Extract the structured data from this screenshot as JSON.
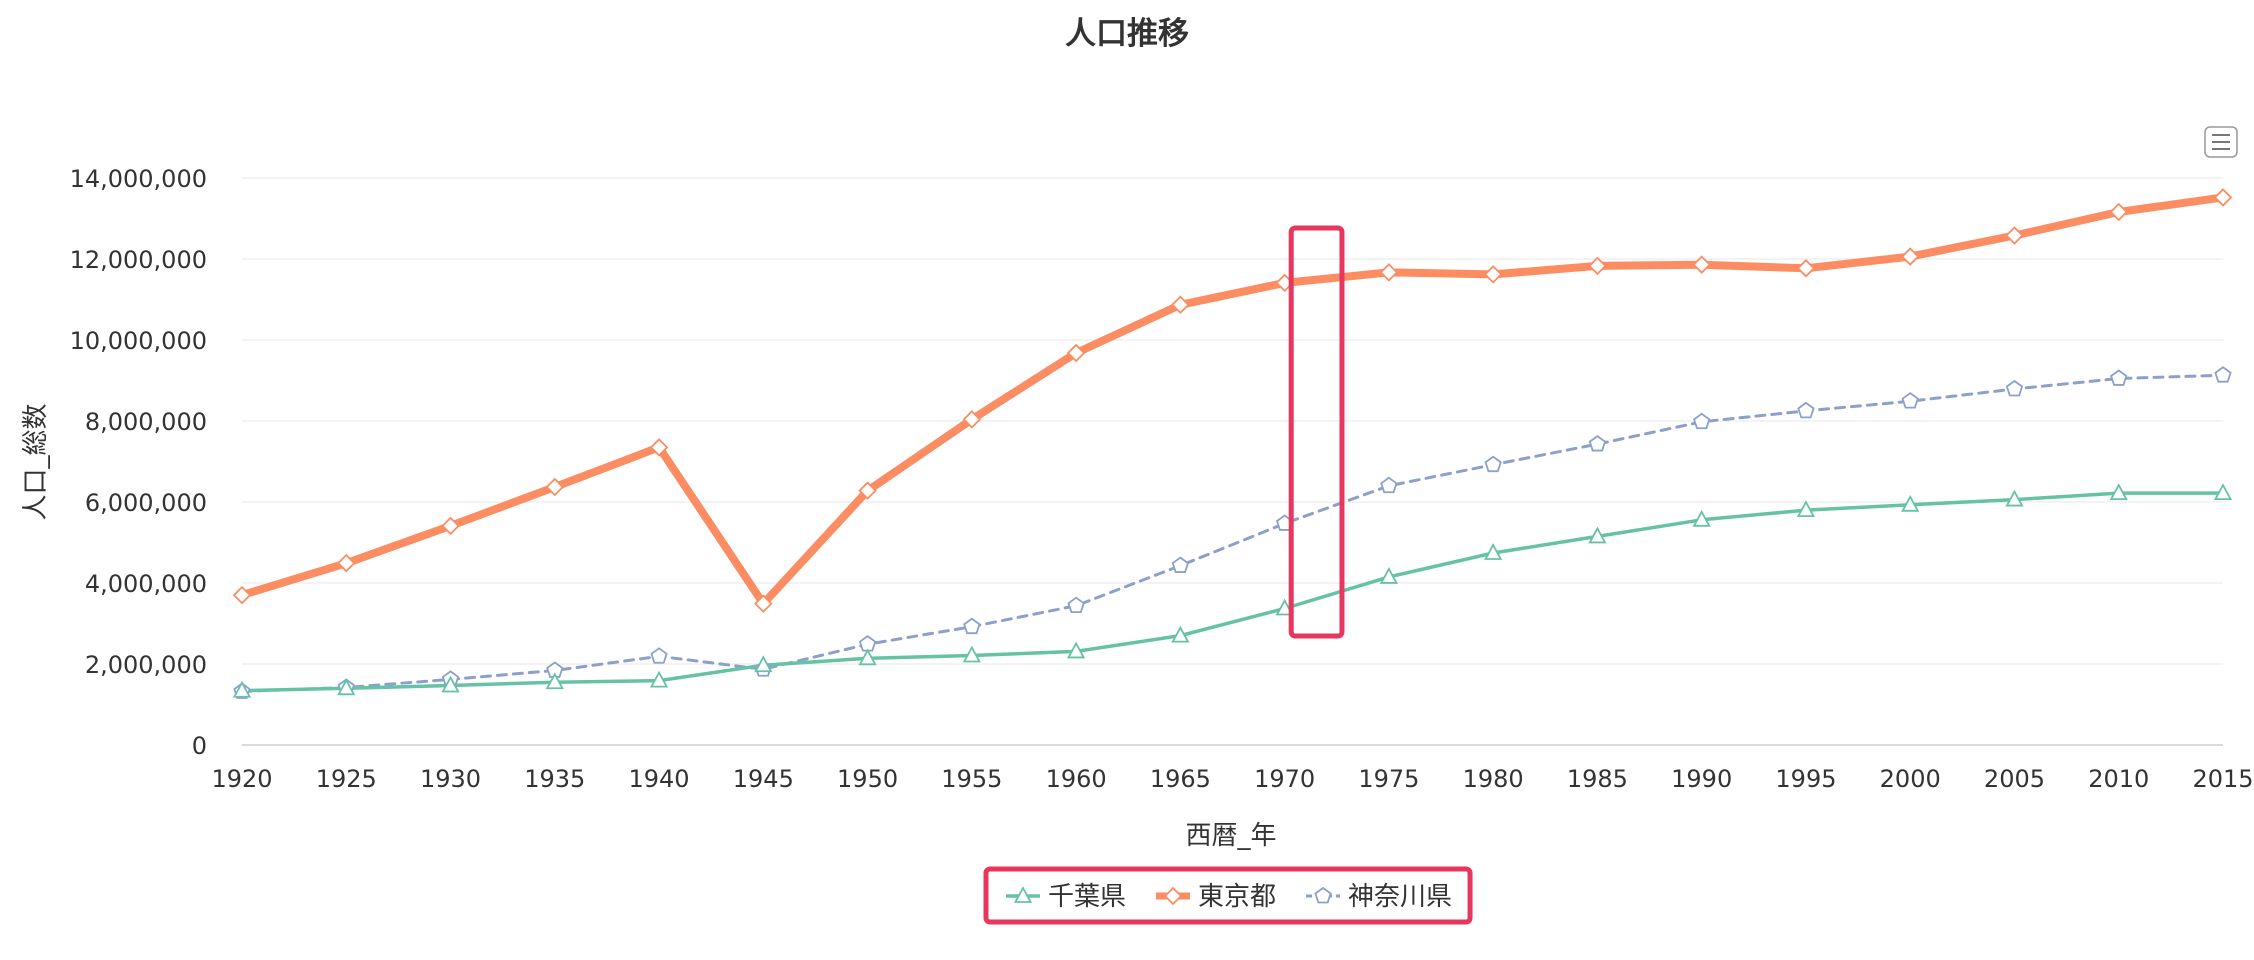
{
  "chart_data": {
    "type": "line",
    "title": "人口推移",
    "xlabel": "西暦_年",
    "ylabel": "人口_総数",
    "x": [
      "1920",
      "1925",
      "1930",
      "1935",
      "1940",
      "1945",
      "1950",
      "1955",
      "1960",
      "1965",
      "1970",
      "1975",
      "1980",
      "1985",
      "1990",
      "1995",
      "2000",
      "2005",
      "2010",
      "2015"
    ],
    "ylim": [
      0,
      14000000
    ],
    "yticks": [
      0,
      2000000,
      4000000,
      6000000,
      8000000,
      10000000,
      12000000,
      14000000
    ],
    "ytick_labels": [
      "0",
      "2,000,000",
      "4,000,000",
      "6,000,000",
      "8,000,000",
      "10,000,000",
      "12,000,000",
      "14,000,000"
    ],
    "grid": true,
    "legend_position": "bottom-center",
    "series": [
      {
        "name": "千葉県",
        "color": "#66c2a5",
        "marker": "triangle",
        "line_style": "solid",
        "values": [
          1340000,
          1400000,
          1470000,
          1550000,
          1590000,
          1970000,
          2140000,
          2210000,
          2310000,
          2700000,
          3370000,
          4150000,
          4740000,
          5150000,
          5560000,
          5800000,
          5930000,
          6060000,
          6220000,
          6220000
        ]
      },
      {
        "name": "東京都",
        "color": "#fc8d62",
        "marker": "diamond",
        "line_style": "solid-thick",
        "values": [
          3700000,
          4490000,
          5410000,
          6370000,
          7350000,
          3490000,
          6280000,
          8040000,
          9680000,
          10870000,
          11410000,
          11670000,
          11620000,
          11830000,
          11860000,
          11770000,
          12060000,
          12580000,
          13160000,
          13520000
        ]
      },
      {
        "name": "神奈川県",
        "color": "#8da0cb",
        "marker": "pentagon",
        "line_style": "dashed",
        "values": [
          1320000,
          1420000,
          1620000,
          1840000,
          2190000,
          1870000,
          2490000,
          2920000,
          3440000,
          4430000,
          5470000,
          6400000,
          6920000,
          7430000,
          7980000,
          8250000,
          8490000,
          8790000,
          9050000,
          9130000
        ]
      }
    ],
    "highlight_boxes": [
      {
        "target": "x-range",
        "x_from": "1970",
        "x_to": "1975",
        "color": "#e8365d"
      },
      {
        "target": "legend",
        "color": "#e8365d"
      }
    ]
  },
  "ui": {
    "menu_icon": "hamburger-menu-icon"
  }
}
